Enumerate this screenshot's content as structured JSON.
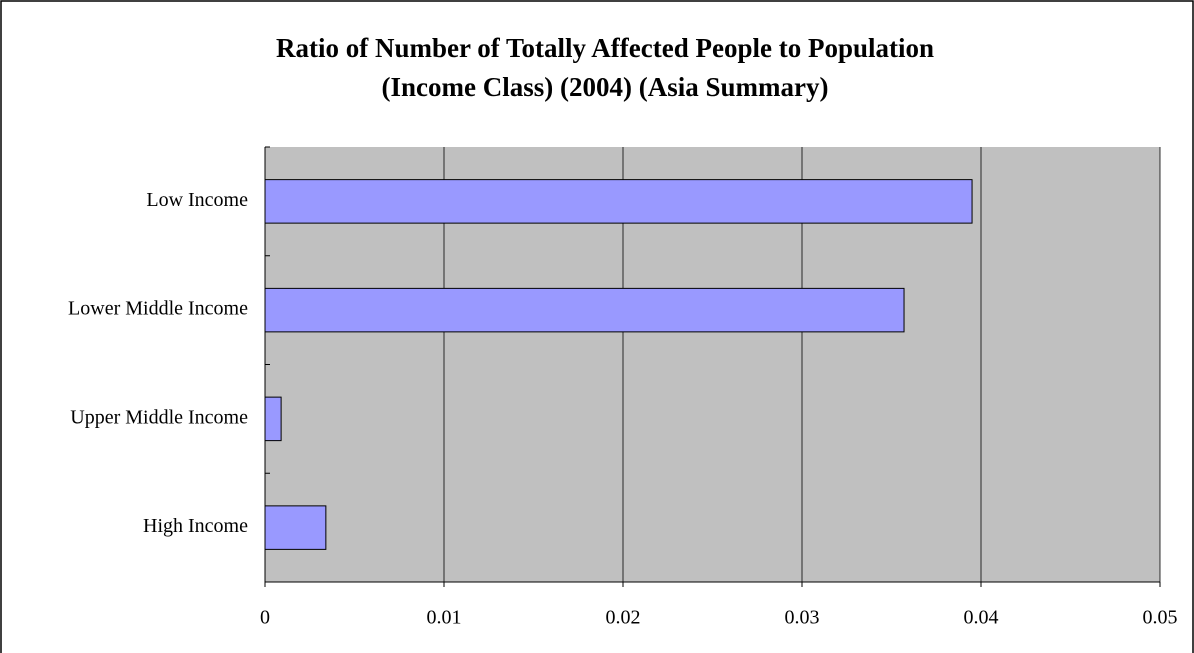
{
  "chart_data": {
    "type": "barh",
    "title": [
      "Ratio of Number of Totally Affected People to Population",
      "(Income Class) (2004) (Asia Summary)"
    ],
    "categories": [
      "Low Income",
      "Lower Middle Income",
      "Upper Middle Income",
      "High Income"
    ],
    "values": [
      0.0395,
      0.0357,
      0.0009,
      0.0034
    ],
    "color": "#9999ff",
    "xlim": [
      0,
      0.05
    ],
    "xticks": [
      0,
      0.01,
      0.02,
      0.03,
      0.04,
      0.05
    ],
    "grid": true
  }
}
